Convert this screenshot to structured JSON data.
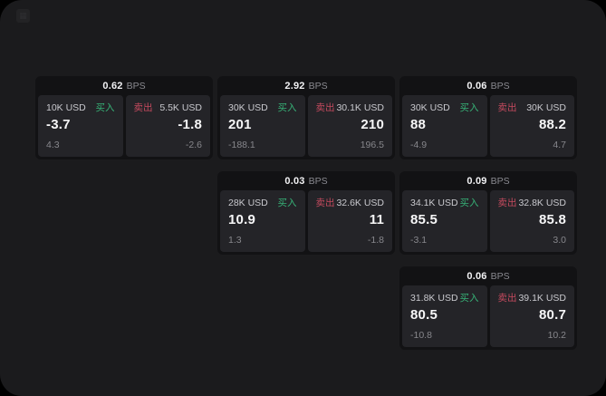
{
  "window": {
    "logo_icon": "app-logo-grid",
    "logo_glyph": "▦"
  },
  "colors": {
    "outside_background": "#000000",
    "surface": "#1b1b1d",
    "card_background": "#121214",
    "panel_background": "#242428",
    "text_primary": "#f7f7f8",
    "text_secondary": "#87878c",
    "text_usd_label": "#c9c9ce",
    "buy_green": "#37b277",
    "sell_red": "#c44a5e"
  },
  "labels": {
    "bps": "BPS",
    "buy": "买入",
    "sell": "卖出"
  },
  "cards": [
    {
      "grid": {
        "row": 1,
        "col": 1
      },
      "bps": "0.62",
      "buy": {
        "amount": "10K USD",
        "value": "-3.7",
        "delta": "4.3"
      },
      "sell": {
        "amount": "5.5K USD",
        "value": "-1.8",
        "delta": "-2.6"
      }
    },
    {
      "grid": {
        "row": 1,
        "col": 2
      },
      "bps": "2.92",
      "buy": {
        "amount": "30K USD",
        "value": "201",
        "delta": "-188.1"
      },
      "sell": {
        "amount": "30.1K USD",
        "value": "210",
        "delta": "196.5"
      }
    },
    {
      "grid": {
        "row": 1,
        "col": 3
      },
      "bps": "0.06",
      "buy": {
        "amount": "30K USD",
        "value": "88",
        "delta": "-4.9"
      },
      "sell": {
        "amount": "30K USD",
        "value": "88.2",
        "delta": "4.7"
      }
    },
    {
      "grid": {
        "row": 2,
        "col": 2
      },
      "bps": "0.03",
      "buy": {
        "amount": "28K USD",
        "value": "10.9",
        "delta": "1.3"
      },
      "sell": {
        "amount": "32.6K USD",
        "value": "11",
        "delta": "-1.8"
      }
    },
    {
      "grid": {
        "row": 2,
        "col": 3
      },
      "bps": "0.09",
      "buy": {
        "amount": "34.1K USD",
        "value": "85.5",
        "delta": "-3.1"
      },
      "sell": {
        "amount": "32.8K USD",
        "value": "85.8",
        "delta": "3.0"
      }
    },
    {
      "grid": {
        "row": 3,
        "col": 3
      },
      "bps": "0.06",
      "buy": {
        "amount": "31.8K USD",
        "value": "80.5",
        "delta": "-10.8"
      },
      "sell": {
        "amount": "39.1K USD",
        "value": "80.7",
        "delta": "10.2"
      }
    }
  ]
}
